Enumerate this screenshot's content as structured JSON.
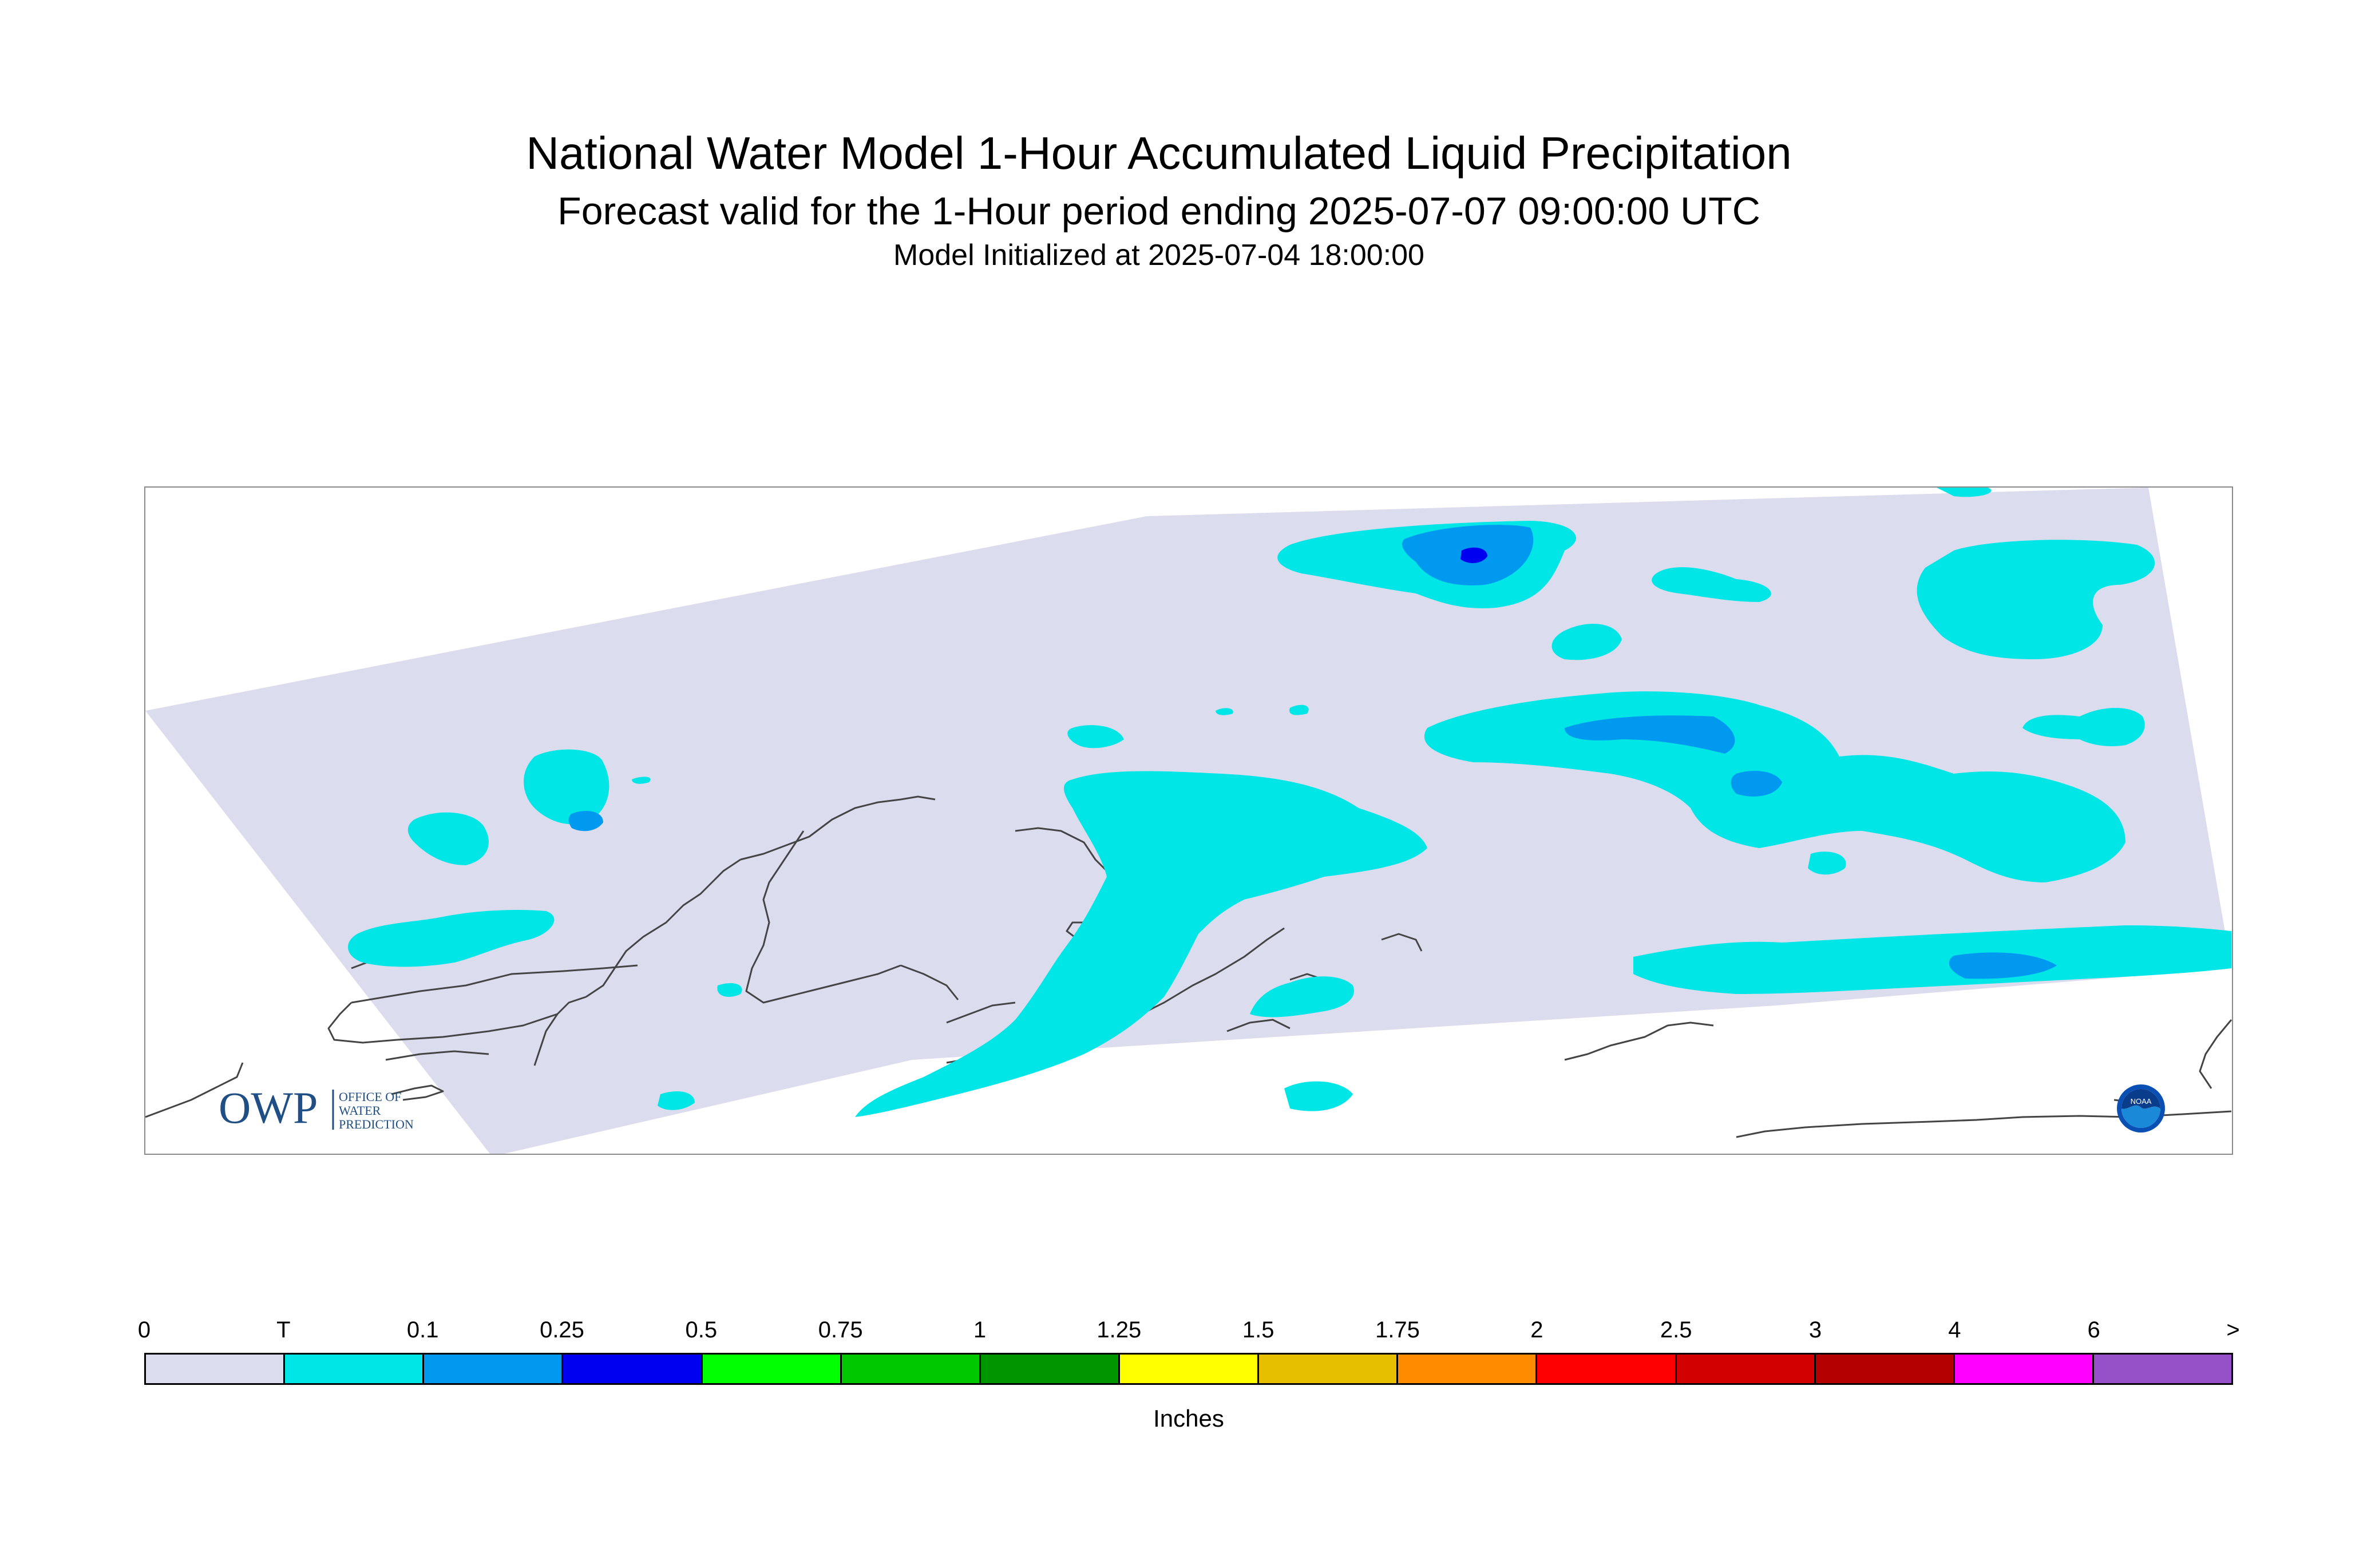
{
  "header": {
    "title": "National Water Model 1-Hour Accumulated Liquid Precipitation",
    "subtitle": "Forecast valid for the 1-Hour period ending 2025-07-07 09:00:00 UTC",
    "init": "Model Initialized at 2025-07-04 18:00:00"
  },
  "logos": {
    "owp_mark": "OWP",
    "owp_text": [
      "OFFICE OF",
      "WATER",
      "PREDICTION"
    ],
    "noaa_mark": "NOAA"
  },
  "legend": {
    "unit": "Inches",
    "ticks": [
      "0",
      "T",
      "0.1",
      "0.25",
      "0.5",
      "0.75",
      "1",
      "1.25",
      "1.5",
      "1.75",
      "2",
      "2.5",
      "3",
      "4",
      "6",
      ">"
    ],
    "colors": [
      "#dcdcef",
      "#00e6e6",
      "#0099f0",
      "#0000f0",
      "#00ff00",
      "#00c800",
      "#009600",
      "#ffff00",
      "#e6c000",
      "#ff8c00",
      "#ff0000",
      "#d20000",
      "#b40000",
      "#ff00ff",
      "#9650c8"
    ]
  },
  "map": {
    "region": "Alaska",
    "background_color": "#dcdcef",
    "precip_colors": {
      "trace": "#00e6e6",
      "light": "#0099f0",
      "moderate": "#0000f0"
    }
  }
}
